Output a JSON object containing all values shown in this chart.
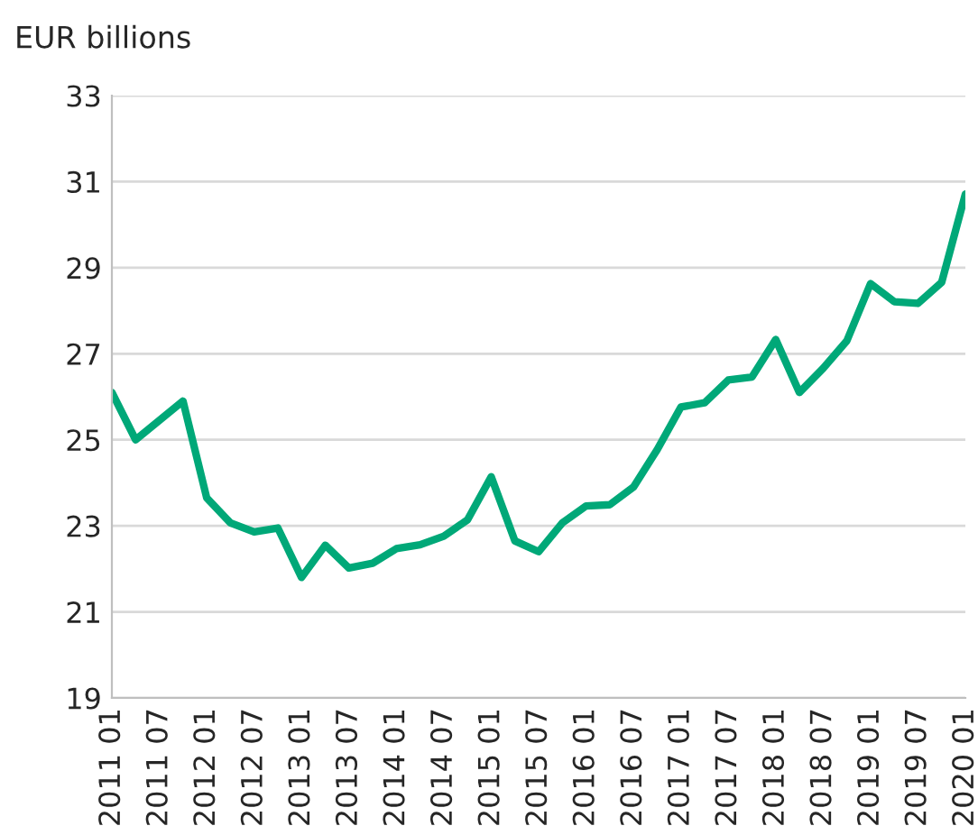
{
  "chart_data": {
    "type": "line",
    "ylabel": "EUR billions",
    "categories": [
      "2011 01",
      null,
      "2011 07",
      null,
      "2012 01",
      null,
      "2012 07",
      null,
      "2013 01",
      null,
      "2013 07",
      null,
      "2014 01",
      null,
      "2014 07",
      null,
      "2015 01",
      null,
      "2015 07",
      null,
      "2016 01",
      null,
      "2016 07",
      null,
      "2017 01",
      null,
      "2017 07",
      null,
      "2018 01",
      null,
      "2018 07",
      null,
      "2019 01",
      null,
      "2019 07",
      null,
      "2020 01"
    ],
    "series": [
      {
        "color": "#00a878",
        "values": [
          26.1,
          25.0,
          25.45,
          25.9,
          23.65,
          23.07,
          22.86,
          22.95,
          21.8,
          22.55,
          22.02,
          22.13,
          22.47,
          22.56,
          22.76,
          23.14,
          24.14,
          22.65,
          22.4,
          23.07,
          23.46,
          23.49,
          23.9,
          24.77,
          25.76,
          25.86,
          26.39,
          26.46,
          27.33,
          26.1,
          26.66,
          27.3,
          28.63,
          28.21,
          28.17,
          28.66,
          30.71
        ]
      }
    ],
    "ylim": [
      19,
      33
    ],
    "yticks": [
      19,
      21,
      23,
      25,
      27,
      29,
      31,
      33
    ],
    "grid": "y",
    "legend": false
  }
}
